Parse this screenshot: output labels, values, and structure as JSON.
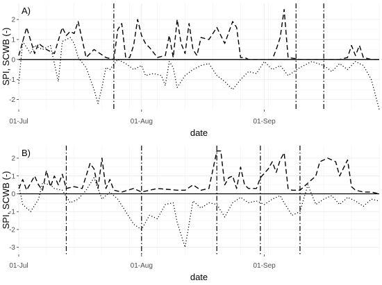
{
  "chart_data": [
    {
      "type": "line",
      "panel_label": "A)",
      "xlabel": "date",
      "ylabel": "SPI, SCWB (-)",
      "xlim": [
        "2018-07-01",
        "2018-09-30"
      ],
      "ylim": [
        -2.5,
        2.8
      ],
      "x_ticks": [
        {
          "date": "2018-07-01",
          "label": "01-Jul"
        },
        {
          "date": "2018-08-01",
          "label": "01-Aug"
        },
        {
          "date": "2018-09-01",
          "label": "01-Sep"
        }
      ],
      "y_ticks": [
        -2,
        -1,
        0,
        1,
        2
      ],
      "reference_line": 0,
      "grid": true,
      "vlines": [
        "2018-07-25",
        "2018-09-09",
        "2018-09-16"
      ],
      "series": [
        {
          "style": "dashed",
          "x": [
            "2018-07-01",
            "2018-07-03",
            "2018-07-05",
            "2018-07-06",
            "2018-07-08",
            "2018-07-10",
            "2018-07-12",
            "2018-07-13",
            "2018-07-14",
            "2018-07-15",
            "2018-07-16",
            "2018-07-18",
            "2018-07-20",
            "2018-07-23",
            "2018-07-25",
            "2018-07-26",
            "2018-07-27",
            "2018-07-28",
            "2018-07-29",
            "2018-07-30",
            "2018-07-31",
            "2018-08-01",
            "2018-08-02",
            "2018-08-03",
            "2018-08-05",
            "2018-08-07",
            "2018-08-08",
            "2018-08-09",
            "2018-08-10",
            "2018-08-11",
            "2018-08-12",
            "2018-08-13",
            "2018-08-14",
            "2018-08-15",
            "2018-08-16",
            "2018-08-18",
            "2018-08-20",
            "2018-08-22",
            "2018-08-24",
            "2018-08-25",
            "2018-08-26",
            "2018-08-27",
            "2018-08-28",
            "2018-08-30",
            "2018-09-01",
            "2018-09-03",
            "2018-09-04",
            "2018-09-05",
            "2018-09-06",
            "2018-09-07",
            "2018-09-10",
            "2018-09-15",
            "2018-09-20",
            "2018-09-22",
            "2018-09-23",
            "2018-09-24",
            "2018-09-25",
            "2018-09-26",
            "2018-09-28",
            "2018-09-30"
          ],
          "y": [
            0.2,
            1.6,
            0.3,
            0.8,
            0.5,
            0.3,
            1.6,
            1.2,
            1.4,
            1.3,
            1.9,
            0.1,
            0.5,
            0.1,
            0.0,
            1.5,
            1.8,
            0.1,
            0.1,
            0.7,
            2.0,
            1.2,
            0.8,
            0.6,
            0.1,
            0.2,
            1.2,
            0.1,
            2.0,
            0.8,
            0.3,
            1.8,
            0.5,
            0.2,
            1.1,
            1.0,
            1.6,
            0.8,
            1.9,
            1.6,
            0.1,
            0.1,
            0.0,
            0.0,
            0.0,
            0.0,
            0.5,
            1.1,
            2.5,
            0.1,
            0.0,
            0.0,
            0.0,
            0.1,
            0.7,
            0.2,
            0.7,
            0.1,
            0.0,
            0.0
          ]
        },
        {
          "style": "dotted",
          "x": [
            "2018-07-01",
            "2018-07-02",
            "2018-07-04",
            "2018-07-05",
            "2018-07-07",
            "2018-07-09",
            "2018-07-11",
            "2018-07-12",
            "2018-07-13",
            "2018-07-14",
            "2018-07-15",
            "2018-07-16",
            "2018-07-18",
            "2018-07-20",
            "2018-07-21",
            "2018-07-22",
            "2018-07-23",
            "2018-07-24",
            "2018-07-26",
            "2018-07-28",
            "2018-07-30",
            "2018-08-01",
            "2018-08-02",
            "2018-08-04",
            "2018-08-06",
            "2018-08-07",
            "2018-08-08",
            "2018-08-09",
            "2018-08-10",
            "2018-08-12",
            "2018-08-14",
            "2018-08-16",
            "2018-08-18",
            "2018-08-20",
            "2018-08-22",
            "2018-08-24",
            "2018-08-26",
            "2018-08-28",
            "2018-08-30",
            "2018-09-01",
            "2018-09-03",
            "2018-09-05",
            "2018-09-07",
            "2018-09-10",
            "2018-09-13",
            "2018-09-16",
            "2018-09-18",
            "2018-09-20",
            "2018-09-22",
            "2018-09-24",
            "2018-09-26",
            "2018-09-28",
            "2018-09-30"
          ],
          "y": [
            -1.2,
            0.9,
            0.3,
            0.7,
            0.5,
            0.7,
            -1.1,
            0.9,
            1.0,
            1.1,
            0.8,
            0.1,
            -0.4,
            -1.5,
            -2.2,
            -1.4,
            -0.4,
            -0.5,
            0.0,
            -0.2,
            -0.5,
            -0.3,
            -0.8,
            -0.7,
            -0.8,
            -1.3,
            -0.1,
            -0.4,
            -1.4,
            -0.8,
            -0.5,
            -0.3,
            -0.2,
            -0.8,
            -1.1,
            -1.5,
            -1.0,
            -0.6,
            -0.7,
            -0.1,
            -0.5,
            -0.3,
            -0.8,
            -0.4,
            -0.1,
            -0.3,
            -0.6,
            -0.2,
            -0.5,
            -0.1,
            -0.3,
            -1.0,
            -2.5
          ]
        }
      ]
    },
    {
      "type": "line",
      "panel_label": "B)",
      "xlabel": "date",
      "ylabel": "SPI, SCWB (-)",
      "xlim": [
        "2018-07-01",
        "2018-09-30"
      ],
      "ylim": [
        -3.4,
        2.7
      ],
      "x_ticks": [
        {
          "date": "2018-07-01",
          "label": "01-Jul"
        },
        {
          "date": "2018-08-01",
          "label": "01-Aug"
        },
        {
          "date": "2018-09-01",
          "label": "01-Sep"
        }
      ],
      "y_ticks": [
        -3,
        -2,
        -1,
        0,
        1,
        2
      ],
      "reference_line": 0,
      "grid": true,
      "vlines": [
        "2018-07-13",
        "2018-08-01",
        "2018-08-20",
        "2018-08-31",
        "2018-09-10"
      ],
      "series": [
        {
          "style": "dashed",
          "x": [
            "2018-07-01",
            "2018-07-02",
            "2018-07-03",
            "2018-07-05",
            "2018-07-06",
            "2018-07-07",
            "2018-07-08",
            "2018-07-09",
            "2018-07-10",
            "2018-07-11",
            "2018-07-12",
            "2018-07-13",
            "2018-07-15",
            "2018-07-17",
            "2018-07-19",
            "2018-07-20",
            "2018-07-21",
            "2018-07-22",
            "2018-07-23",
            "2018-07-24",
            "2018-07-25",
            "2018-07-27",
            "2018-07-30",
            "2018-08-01",
            "2018-08-05",
            "2018-08-10",
            "2018-08-12",
            "2018-08-14",
            "2018-08-16",
            "2018-08-18",
            "2018-08-20",
            "2018-08-21",
            "2018-08-22",
            "2018-08-23",
            "2018-08-24",
            "2018-08-25",
            "2018-08-26",
            "2018-08-27",
            "2018-08-28",
            "2018-08-29",
            "2018-08-30",
            "2018-08-31",
            "2018-09-02",
            "2018-09-03",
            "2018-09-04",
            "2018-09-05",
            "2018-09-06",
            "2018-09-07",
            "2018-09-08",
            "2018-09-10",
            "2018-09-12",
            "2018-09-14",
            "2018-09-15",
            "2018-09-17",
            "2018-09-19",
            "2018-09-20",
            "2018-09-22",
            "2018-09-23",
            "2018-09-24",
            "2018-09-26",
            "2018-09-28",
            "2018-09-30"
          ],
          "y": [
            0.3,
            0.8,
            0.2,
            1.0,
            0.5,
            0.2,
            1.3,
            0.4,
            1.0,
            0.5,
            1.1,
            0.3,
            0.4,
            0.3,
            1.7,
            1.4,
            0.3,
            2.0,
            0.3,
            0.8,
            0.2,
            0.1,
            0.3,
            0.1,
            0.3,
            0.2,
            0.2,
            0.5,
            0.2,
            0.3,
            2.4,
            2.4,
            0.5,
            0.9,
            1.0,
            0.3,
            1.5,
            0.5,
            0.3,
            0.3,
            0.3,
            0.9,
            1.4,
            1.8,
            1.2,
            1.9,
            2.3,
            0.3,
            0.2,
            0.2,
            0.6,
            1.0,
            1.8,
            2.0,
            1.8,
            1.0,
            1.9,
            0.4,
            0.2,
            0.1,
            0.1,
            0.0
          ]
        },
        {
          "style": "dotted",
          "x": [
            "2018-07-01",
            "2018-07-02",
            "2018-07-04",
            "2018-07-06",
            "2018-07-07",
            "2018-07-09",
            "2018-07-10",
            "2018-07-12",
            "2018-07-14",
            "2018-07-16",
            "2018-07-18",
            "2018-07-20",
            "2018-07-22",
            "2018-07-24",
            "2018-07-26",
            "2018-07-28",
            "2018-07-30",
            "2018-08-01",
            "2018-08-03",
            "2018-08-05",
            "2018-08-07",
            "2018-08-09",
            "2018-08-10",
            "2018-08-12",
            "2018-08-14",
            "2018-08-16",
            "2018-08-18",
            "2018-08-20",
            "2018-08-22",
            "2018-08-24",
            "2018-08-26",
            "2018-08-28",
            "2018-08-30",
            "2018-09-01",
            "2018-09-03",
            "2018-09-05",
            "2018-09-06",
            "2018-09-08",
            "2018-09-10",
            "2018-09-12",
            "2018-09-14",
            "2018-09-16",
            "2018-09-18",
            "2018-09-20",
            "2018-09-22",
            "2018-09-24",
            "2018-09-26",
            "2018-09-28",
            "2018-09-30"
          ],
          "y": [
            0.5,
            -0.6,
            -1.0,
            -0.3,
            0.6,
            0.5,
            0.3,
            0.2,
            -0.5,
            -0.3,
            0.2,
            0.9,
            -0.3,
            0.1,
            -0.3,
            -1.0,
            -1.7,
            -2.0,
            -1.2,
            -1.4,
            -0.6,
            -0.5,
            -1.6,
            -3.0,
            -0.4,
            -0.8,
            -0.5,
            -0.6,
            -1.3,
            -0.5,
            -0.2,
            -0.5,
            -0.4,
            -0.6,
            -0.3,
            -0.1,
            -0.5,
            -1.2,
            -1.0,
            0.5,
            -0.6,
            -0.3,
            -0.1,
            -0.6,
            -0.2,
            -0.4,
            -0.7,
            -0.3,
            -0.4
          ]
        }
      ]
    }
  ]
}
